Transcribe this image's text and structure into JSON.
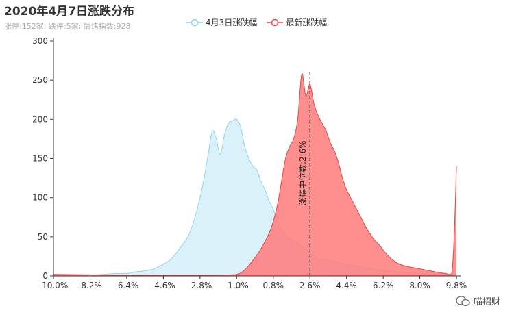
{
  "title": "2020年4月7日涨跌分布",
  "subtitle": "涨停:152家; 跌停:5家; 情绪指数:928",
  "legend": [
    {
      "label": "4月3日涨跌幅",
      "color": "#86d3ef"
    },
    {
      "label": "最新涨跌幅",
      "color": "#ee4444"
    }
  ],
  "watermark": "喵招财",
  "median_label": "涨幅中位数:2.6%",
  "colors": {
    "prev_fill": "#dbf1fa",
    "prev_line": "#8fd4ee",
    "cur_fill": "#ff7a7a",
    "cur_line": "#e64545",
    "axis": "#333333",
    "median_line": "#333333"
  },
  "chart_data": {
    "type": "area",
    "xlim": [
      -10.0,
      10.0
    ],
    "ylim": [
      0,
      300
    ],
    "x_ticks": [
      "-10.0%",
      "-8.2%",
      "-6.4%",
      "-4.6%",
      "-2.8%",
      "-1.0%",
      "0.8%",
      "2.6%",
      "4.4%",
      "6.2%",
      "8.0%",
      "9.8%"
    ],
    "x_tick_values": [
      -10.0,
      -8.2,
      -6.4,
      -4.6,
      -2.8,
      -1.0,
      0.8,
      2.6,
      4.4,
      6.2,
      8.0,
      9.8
    ],
    "y_ticks": [
      0,
      50,
      100,
      150,
      200,
      250,
      300
    ],
    "median": 2.6,
    "series": [
      {
        "name": "4月3日涨跌幅",
        "points": [
          [
            -10,
            2
          ],
          [
            -9,
            1
          ],
          [
            -8.2,
            1
          ],
          [
            -7,
            3
          ],
          [
            -6.4,
            3
          ],
          [
            -6,
            5
          ],
          [
            -5.2,
            8
          ],
          [
            -4.6,
            15
          ],
          [
            -4.2,
            22
          ],
          [
            -3.8,
            35
          ],
          [
            -3.4,
            50
          ],
          [
            -3.1,
            70
          ],
          [
            -2.8,
            100
          ],
          [
            -2.6,
            125
          ],
          [
            -2.4,
            155
          ],
          [
            -2.2,
            185
          ],
          [
            -2.0,
            175
          ],
          [
            -1.8,
            155
          ],
          [
            -1.6,
            180
          ],
          [
            -1.4,
            195
          ],
          [
            -1.2,
            198
          ],
          [
            -1.0,
            200
          ],
          [
            -0.8,
            190
          ],
          [
            -0.6,
            165
          ],
          [
            -0.4,
            150
          ],
          [
            -0.2,
            140
          ],
          [
            0.0,
            135
          ],
          [
            0.2,
            120
          ],
          [
            0.4,
            110
          ],
          [
            0.6,
            95
          ],
          [
            0.8,
            85
          ],
          [
            1.0,
            70
          ],
          [
            1.2,
            60
          ],
          [
            1.4,
            52
          ],
          [
            1.6,
            48
          ],
          [
            1.8,
            45
          ],
          [
            2.0,
            42
          ],
          [
            2.2,
            38
          ],
          [
            2.4,
            35
          ],
          [
            2.6,
            30
          ],
          [
            2.8,
            25
          ],
          [
            3.0,
            22
          ],
          [
            3.4,
            20
          ],
          [
            3.8,
            18
          ],
          [
            4.2,
            16
          ],
          [
            4.6,
            14
          ],
          [
            5.0,
            12
          ],
          [
            5.6,
            9
          ],
          [
            6.2,
            7
          ],
          [
            7.0,
            5
          ],
          [
            8.0,
            3
          ],
          [
            9.0,
            2
          ],
          [
            9.6,
            2
          ],
          [
            9.8,
            3
          ]
        ]
      },
      {
        "name": "最新涨跌幅",
        "points": [
          [
            -10,
            2
          ],
          [
            -7,
            1
          ],
          [
            -4,
            1
          ],
          [
            -2,
            1
          ],
          [
            -1,
            2
          ],
          [
            -0.6,
            8
          ],
          [
            -0.2,
            20
          ],
          [
            0.2,
            35
          ],
          [
            0.6,
            55
          ],
          [
            0.8,
            70
          ],
          [
            1.0,
            90
          ],
          [
            1.2,
            120
          ],
          [
            1.4,
            150
          ],
          [
            1.6,
            165
          ],
          [
            1.8,
            175
          ],
          [
            2.0,
            200
          ],
          [
            2.2,
            258
          ],
          [
            2.4,
            230
          ],
          [
            2.6,
            245
          ],
          [
            2.8,
            220
          ],
          [
            3.0,
            205
          ],
          [
            3.2,
            195
          ],
          [
            3.4,
            185
          ],
          [
            3.6,
            170
          ],
          [
            3.8,
            160
          ],
          [
            4.0,
            145
          ],
          [
            4.2,
            125
          ],
          [
            4.4,
            110
          ],
          [
            4.6,
            100
          ],
          [
            4.8,
            90
          ],
          [
            5.0,
            80
          ],
          [
            5.2,
            70
          ],
          [
            5.4,
            60
          ],
          [
            5.6,
            52
          ],
          [
            5.8,
            45
          ],
          [
            6.0,
            40
          ],
          [
            6.2,
            33
          ],
          [
            6.4,
            27
          ],
          [
            6.6,
            22
          ],
          [
            6.8,
            18
          ],
          [
            7.0,
            15
          ],
          [
            7.4,
            12
          ],
          [
            7.8,
            10
          ],
          [
            8.2,
            8
          ],
          [
            8.6,
            6
          ],
          [
            9.0,
            4
          ],
          [
            9.3,
            3
          ],
          [
            9.5,
            2
          ],
          [
            9.6,
            10
          ],
          [
            9.7,
            60
          ],
          [
            9.8,
            140
          ]
        ]
      }
    ]
  }
}
